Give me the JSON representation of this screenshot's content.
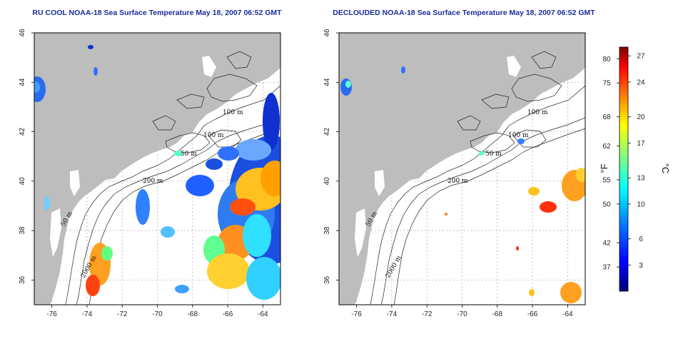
{
  "panels": [
    {
      "title": "RU COOL NOAA-18 Sea Surface Temperature May 18, 2007 06:52 GMT",
      "contours": [
        "100 m",
        "100 m",
        "50 m",
        "200 m",
        "50 m",
        "2000 m"
      ]
    },
    {
      "title": "DECLOUDED NOAA-18 Sea Surface Temperature May 18, 2007 06:52 GMT",
      "contours": [
        "100 m",
        "100 m",
        "50 m",
        "200 m",
        "50 m",
        "2000 m"
      ]
    }
  ],
  "axes": {
    "x_ticks": [
      "-76",
      "-74",
      "-72",
      "-70",
      "-68",
      "-66",
      "-64"
    ],
    "y_ticks": [
      "46",
      "44",
      "42",
      "40",
      "38",
      "36"
    ],
    "x_range": [
      -77,
      -63
    ],
    "y_range": [
      35,
      46
    ],
    "grid": "dashed"
  },
  "colorbar": {
    "f_unit": "°F",
    "c_unit": "°C",
    "f_ticks": [
      "80",
      "75",
      "68",
      "62",
      "55",
      "50",
      "42",
      "37"
    ],
    "c_ticks": [
      "27",
      "24",
      "20",
      "17",
      "13",
      "10",
      "6",
      "3"
    ],
    "colors": [
      "#000080",
      "#0000ff",
      "#0080ff",
      "#00ffff",
      "#80ff80",
      "#ffff00",
      "#ff8000",
      "#ff0000",
      "#800000"
    ]
  }
}
